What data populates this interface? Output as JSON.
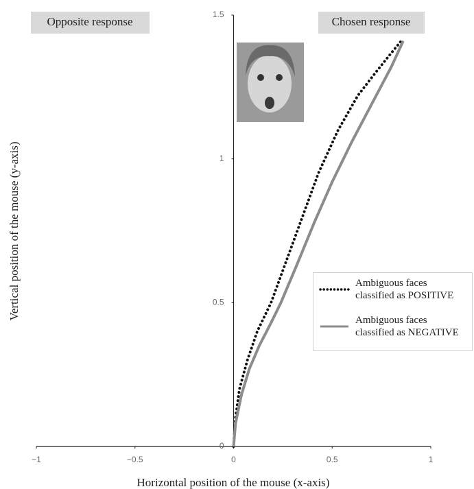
{
  "chart_data": {
    "type": "line",
    "xlabel": "Horizontal position of the mouse (x-axis)",
    "ylabel": "Vertical position of the mouse (y-axis)",
    "annotations": [
      "Opposite response",
      "Chosen response"
    ],
    "xlim": [
      -1,
      1
    ],
    "xticks": [
      {
        "value": -1,
        "label": "−1"
      },
      {
        "value": -0.5,
        "label": "−0.5"
      },
      0,
      0.5,
      1
    ],
    "ylim": [
      0,
      1.5
    ],
    "yticks": [
      0,
      0.5,
      1,
      1.5
    ],
    "series": [
      {
        "name": "Ambiguous faces\nclassified as POSITIVE",
        "color": "#111111",
        "dash": "dotted",
        "x": [
          0,
          0.01,
          0.03,
          0.07,
          0.12,
          0.19,
          0.27,
          0.35,
          0.43,
          0.53,
          0.63,
          0.72,
          0.79,
          0.85
        ],
        "values": [
          0,
          0.1,
          0.2,
          0.3,
          0.4,
          0.5,
          0.65,
          0.8,
          0.95,
          1.1,
          1.22,
          1.3,
          1.36,
          1.41
        ]
      },
      {
        "name": "Ambiguous faces\nclassified as NEGATIVE",
        "color": "#8c8c8c",
        "dash": "solid",
        "x": [
          0,
          0.01,
          0.04,
          0.08,
          0.13,
          0.19,
          0.24,
          0.32,
          0.41,
          0.5,
          0.6,
          0.7,
          0.8,
          0.86
        ],
        "values": [
          0,
          0.08,
          0.18,
          0.27,
          0.35,
          0.43,
          0.5,
          0.63,
          0.78,
          0.92,
          1.06,
          1.19,
          1.32,
          1.41
        ]
      }
    ]
  }
}
